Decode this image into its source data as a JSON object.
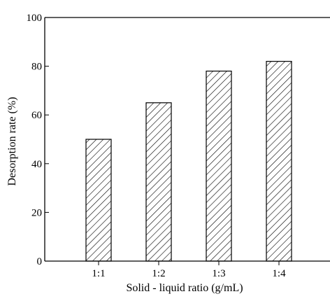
{
  "chart_data": {
    "type": "bar",
    "categories": [
      "1:1",
      "1:2",
      "1:3",
      "1:4"
    ],
    "values": [
      50,
      65,
      78,
      82
    ],
    "title": "",
    "xlabel": "Solid - liquid ratio (g/mL)",
    "ylabel": "Desorption rate (%)",
    "ylim": [
      0,
      100
    ],
    "yticks": [
      "0",
      "20",
      "40",
      "60",
      "80",
      "100"
    ],
    "grid": false,
    "bar_fill": "diagonal-hatch",
    "colors": {
      "axis": "#000000",
      "bar_outline": "#000000",
      "hatch": "#000000",
      "background": "#ffffff"
    }
  }
}
